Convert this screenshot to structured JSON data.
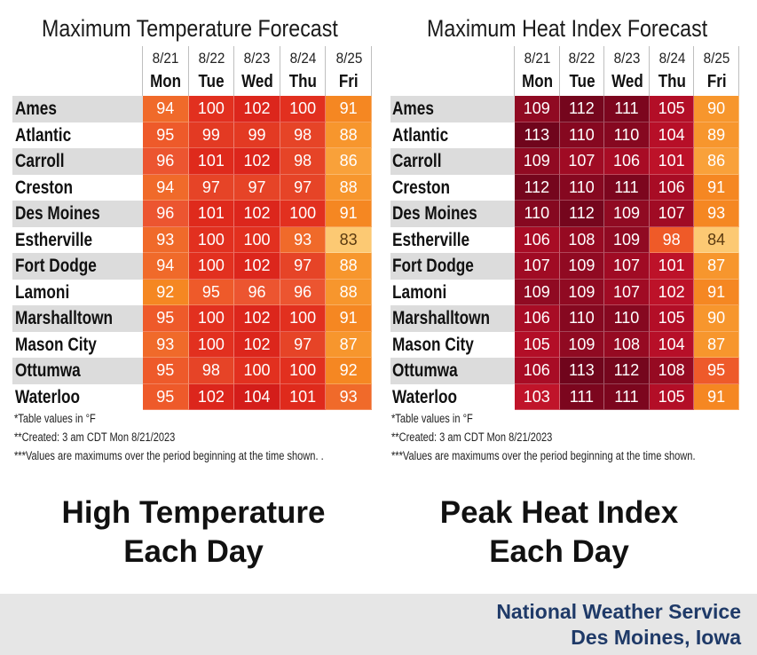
{
  "colors": {
    "temp_scale": {
      "83": "#fcc973",
      "86": "#f9a13a",
      "87": "#f7962d",
      "88": "#f7962d",
      "91": "#f58722",
      "92": "#f58722",
      "93": "#f06a2a",
      "94": "#f06a2a",
      "95": "#ee5a2a",
      "96": "#ec5530",
      "97": "#e64427",
      "98": "#e64427",
      "99": "#e33a23",
      "100": "#e2301f",
      "101": "#df2a1c",
      "102": "#dc261c",
      "104": "#d41d1a"
    },
    "hi_scale": {
      "84": "#fcc973",
      "86": "#f9a13a",
      "87": "#f7962d",
      "89": "#f7962d",
      "90": "#f7962d",
      "91": "#f58722",
      "93": "#f58722",
      "95": "#ee5a2a",
      "98": "#ef5a28",
      "101": "#bd1229",
      "102": "#bd1229",
      "103": "#c0142a",
      "104": "#b70f28",
      "105": "#b30e27",
      "106": "#a80c25",
      "107": "#a00b24",
      "108": "#960a22",
      "109": "#900a22",
      "110": "#860820",
      "111": "#7c061e",
      "112": "#75061d",
      "113": "#70051c"
    },
    "row_shade": "#dcdcdc",
    "nws_blue": "#1f3a68"
  },
  "chart_data": [
    {
      "type": "table",
      "title": "Maximum Temperature Forecast",
      "columns": [
        {
          "date": "8/21",
          "day": "Mon"
        },
        {
          "date": "8/22",
          "day": "Tue"
        },
        {
          "date": "8/23",
          "day": "Wed"
        },
        {
          "date": "8/24",
          "day": "Thu"
        },
        {
          "date": "8/25",
          "day": "Fri"
        }
      ],
      "rows": [
        {
          "city": "Ames",
          "values": [
            94,
            100,
            102,
            100,
            91
          ]
        },
        {
          "city": "Atlantic",
          "values": [
            95,
            99,
            99,
            98,
            88
          ]
        },
        {
          "city": "Carroll",
          "values": [
            96,
            101,
            102,
            98,
            86
          ]
        },
        {
          "city": "Creston",
          "values": [
            94,
            97,
            97,
            97,
            88
          ]
        },
        {
          "city": "Des Moines",
          "values": [
            96,
            101,
            102,
            100,
            91
          ]
        },
        {
          "city": "Estherville",
          "values": [
            93,
            100,
            100,
            93,
            83
          ]
        },
        {
          "city": "Fort Dodge",
          "values": [
            94,
            100,
            102,
            97,
            88
          ]
        },
        {
          "city": "Lamoni",
          "values": [
            92,
            95,
            96,
            96,
            88
          ]
        },
        {
          "city": "Marshalltown",
          "values": [
            95,
            100,
            102,
            100,
            91
          ]
        },
        {
          "city": "Mason City",
          "values": [
            93,
            100,
            102,
            97,
            87
          ]
        },
        {
          "city": "Ottumwa",
          "values": [
            95,
            98,
            100,
            100,
            92
          ]
        },
        {
          "city": "Waterloo",
          "values": [
            95,
            102,
            104,
            101,
            93
          ]
        }
      ],
      "footnotes": [
        "*Table values in °F",
        "**Created: 3 am CDT Mon 8/21/2023",
        "***Values are maximums over the period beginning at the time shown. ."
      ]
    },
    {
      "type": "table",
      "title": "Maximum Heat Index Forecast",
      "columns": [
        {
          "date": "8/21",
          "day": "Mon"
        },
        {
          "date": "8/22",
          "day": "Tue"
        },
        {
          "date": "8/23",
          "day": "Wed"
        },
        {
          "date": "8/24",
          "day": "Thu"
        },
        {
          "date": "8/25",
          "day": "Fri"
        }
      ],
      "rows": [
        {
          "city": "Ames",
          "values": [
            109,
            112,
            111,
            105,
            90
          ]
        },
        {
          "city": "Atlantic",
          "values": [
            113,
            110,
            110,
            104,
            89
          ]
        },
        {
          "city": "Carroll",
          "values": [
            109,
            107,
            106,
            101,
            86
          ]
        },
        {
          "city": "Creston",
          "values": [
            112,
            110,
            111,
            106,
            91
          ]
        },
        {
          "city": "Des Moines",
          "values": [
            110,
            112,
            109,
            107,
            93
          ]
        },
        {
          "city": "Estherville",
          "values": [
            106,
            108,
            109,
            98,
            84
          ]
        },
        {
          "city": "Fort Dodge",
          "values": [
            107,
            109,
            107,
            101,
            87
          ]
        },
        {
          "city": "Lamoni",
          "values": [
            109,
            109,
            107,
            102,
            91
          ]
        },
        {
          "city": "Marshalltown",
          "values": [
            106,
            110,
            110,
            105,
            90
          ]
        },
        {
          "city": "Mason City",
          "values": [
            105,
            109,
            108,
            104,
            87
          ]
        },
        {
          "city": "Ottumwa",
          "values": [
            106,
            113,
            112,
            108,
            95
          ]
        },
        {
          "city": "Waterloo",
          "values": [
            103,
            111,
            111,
            105,
            91
          ]
        }
      ],
      "footnotes": [
        "*Table values in °F",
        "**Created: 3 am CDT Mon 8/21/2023",
        "***Values are maximums over the period beginning at the time shown."
      ]
    }
  ],
  "captions": {
    "left_line1": "High Temperature",
    "left_line2": "Each Day",
    "right_line1": "Peak Heat Index",
    "right_line2": "Each Day"
  },
  "footer": {
    "line1": "National Weather Service",
    "line2": "Des Moines, Iowa"
  }
}
